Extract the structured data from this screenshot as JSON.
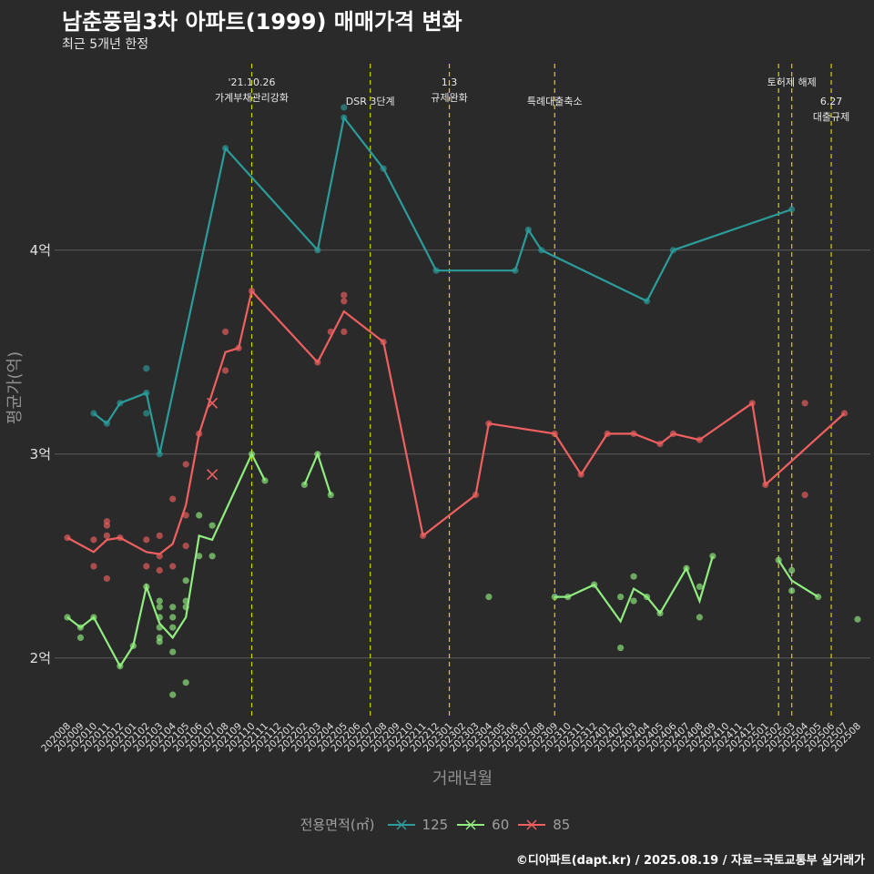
{
  "title": "남춘풍림3차 아파트(1999) 매매가격 변화",
  "subtitle": "최근 5개년 한정",
  "caption": "©디아파트(dapt.kr) / 2025.08.19 / 자료=국토교통부 실거래가",
  "chart_data": {
    "type": "line",
    "xlabel": "거래년월",
    "ylabel": "평균가(억)",
    "ylim": [
      1.7,
      4.95
    ],
    "yticks": [
      {
        "v": 2,
        "label": "2억"
      },
      {
        "v": 3,
        "label": "3억"
      },
      {
        "v": 4,
        "label": "4억"
      }
    ],
    "x": [
      "202008",
      "202009",
      "202010",
      "202011",
      "202012",
      "202101",
      "202102",
      "202103",
      "202104",
      "202105",
      "202106",
      "202107",
      "202108",
      "202109",
      "202110",
      "202111",
      "202112",
      "202201",
      "202202",
      "202203",
      "202204",
      "202205",
      "202206",
      "202207",
      "202208",
      "202209",
      "202210",
      "202211",
      "202212",
      "202301",
      "202302",
      "202303",
      "202304",
      "202305",
      "202306",
      "202307",
      "202308",
      "202309",
      "202310",
      "202311",
      "202312",
      "202401",
      "202402",
      "202403",
      "202404",
      "202405",
      "202406",
      "202407",
      "202408",
      "202409",
      "202410",
      "202411",
      "202412",
      "202501",
      "202502",
      "202503",
      "202504",
      "202505",
      "202506",
      "202507",
      "202508"
    ],
    "grid": true,
    "legend": {
      "title": "전용면적(㎡)",
      "placement": "bottom"
    },
    "series": [
      {
        "name": "125",
        "color": "#2a9d9a",
        "line": [
          [
            "202010",
            3.2
          ],
          [
            "202011",
            3.15
          ],
          [
            "202012",
            3.25
          ],
          [
            "202102",
            3.3
          ],
          [
            "202103",
            3.0
          ],
          [
            "202108",
            4.5
          ],
          [
            "202203",
            4.0
          ],
          [
            "202205",
            4.65
          ],
          [
            "202208",
            4.4
          ],
          [
            "202212",
            3.9
          ],
          [
            "202306",
            3.9
          ],
          [
            "202307",
            4.1
          ],
          [
            "202308",
            4.0
          ],
          [
            "202404",
            3.75
          ],
          [
            "202406",
            4.0
          ],
          [
            "202503",
            4.2
          ]
        ],
        "points": [
          [
            "202010",
            3.2
          ],
          [
            "202011",
            3.15
          ],
          [
            "202012",
            3.25
          ],
          [
            "202102",
            3.3
          ],
          [
            "202102",
            3.42
          ],
          [
            "202102",
            3.2
          ],
          [
            "202103",
            3.0
          ],
          [
            "202108",
            4.5
          ],
          [
            "202203",
            4.0
          ],
          [
            "202205",
            4.65
          ],
          [
            "202205",
            4.7
          ],
          [
            "202208",
            4.4
          ],
          [
            "202212",
            3.9
          ],
          [
            "202306",
            3.9
          ],
          [
            "202307",
            4.1
          ],
          [
            "202308",
            4.0
          ],
          [
            "202404",
            3.75
          ],
          [
            "202406",
            4.0
          ],
          [
            "202503",
            4.2
          ]
        ],
        "crosses": []
      },
      {
        "name": "60",
        "color": "#90ee7e",
        "line": [
          [
            "202008",
            2.2
          ],
          [
            "202009",
            2.15
          ],
          [
            "202010",
            2.2
          ],
          [
            "202012",
            1.96
          ],
          [
            "202101",
            2.06
          ],
          [
            "202102",
            2.35
          ],
          [
            "202103",
            2.17
          ],
          [
            "202104",
            2.1
          ],
          [
            "202105",
            2.2
          ],
          [
            "202106",
            2.6
          ],
          [
            "202107",
            2.58
          ],
          [
            "202110",
            3.0
          ],
          [
            "202111",
            2.87
          ],
          null,
          [
            "202202",
            2.85
          ],
          [
            "202203",
            3.0
          ],
          [
            "202204",
            2.8
          ],
          null,
          [
            "202309",
            2.3
          ],
          [
            "202310",
            2.3
          ],
          [
            "202312",
            2.36
          ],
          [
            "202402",
            2.18
          ],
          [
            "202403",
            2.34
          ],
          [
            "202404",
            2.3
          ],
          [
            "202405",
            2.22
          ],
          [
            "202407",
            2.44
          ],
          [
            "202408",
            2.28
          ],
          [
            "202409",
            2.5
          ],
          null,
          [
            "202502",
            2.48
          ],
          [
            "202503",
            2.38
          ],
          [
            "202505",
            2.3
          ]
        ],
        "points": [
          [
            "202008",
            2.2
          ],
          [
            "202009",
            2.1
          ],
          [
            "202009",
            2.15
          ],
          [
            "202010",
            2.2
          ],
          [
            "202012",
            1.96
          ],
          [
            "202101",
            2.06
          ],
          [
            "202102",
            2.35
          ],
          [
            "202103",
            2.28
          ],
          [
            "202103",
            2.25
          ],
          [
            "202103",
            2.2
          ],
          [
            "202103",
            2.15
          ],
          [
            "202103",
            2.1
          ],
          [
            "202103",
            2.08
          ],
          [
            "202104",
            2.25
          ],
          [
            "202104",
            2.2
          ],
          [
            "202104",
            2.15
          ],
          [
            "202104",
            2.03
          ],
          [
            "202104",
            1.82
          ],
          [
            "202105",
            2.38
          ],
          [
            "202105",
            2.28
          ],
          [
            "202105",
            2.25
          ],
          [
            "202105",
            1.88
          ],
          [
            "202106",
            2.7
          ],
          [
            "202106",
            2.5
          ],
          [
            "202107",
            2.65
          ],
          [
            "202107",
            2.5
          ],
          [
            "202110",
            3.0
          ],
          [
            "202111",
            2.87
          ],
          [
            "202202",
            2.85
          ],
          [
            "202203",
            3.0
          ],
          [
            "202204",
            2.8
          ],
          [
            "202304",
            2.3
          ],
          [
            "202309",
            2.3
          ],
          [
            "202310",
            2.3
          ],
          [
            "202312",
            2.36
          ],
          [
            "202402",
            2.3
          ],
          [
            "202402",
            2.05
          ],
          [
            "202403",
            2.4
          ],
          [
            "202403",
            2.28
          ],
          [
            "202404",
            2.3
          ],
          [
            "202405",
            2.22
          ],
          [
            "202407",
            2.44
          ],
          [
            "202408",
            2.35
          ],
          [
            "202408",
            2.2
          ],
          [
            "202409",
            2.5
          ],
          [
            "202502",
            2.48
          ],
          [
            "202503",
            2.43
          ],
          [
            "202503",
            2.33
          ],
          [
            "202505",
            2.3
          ],
          [
            "202508",
            2.19
          ]
        ],
        "crosses": []
      },
      {
        "name": "85",
        "color": "#f06060",
        "line": [
          [
            "202008",
            2.59
          ],
          [
            "202010",
            2.52
          ],
          [
            "202011",
            2.58
          ],
          [
            "202012",
            2.59
          ],
          [
            "202102",
            2.52
          ],
          [
            "202103",
            2.51
          ],
          [
            "202104",
            2.56
          ],
          [
            "202105",
            2.75
          ],
          [
            "202106",
            3.1
          ],
          [
            "202108",
            3.5
          ],
          [
            "202109",
            3.52
          ],
          [
            "202110",
            3.8
          ],
          [
            "202203",
            3.45
          ],
          [
            "202205",
            3.7
          ],
          [
            "202208",
            3.55
          ],
          [
            "202211",
            2.6
          ],
          [
            "202303",
            2.8
          ],
          [
            "202304",
            3.15
          ],
          [
            "202309",
            3.1
          ],
          [
            "202311",
            2.9
          ],
          [
            "202401",
            3.1
          ],
          [
            "202403",
            3.1
          ],
          [
            "202405",
            3.05
          ],
          [
            "202406",
            3.1
          ],
          [
            "202408",
            3.07
          ],
          [
            "202412",
            3.25
          ],
          [
            "202501",
            2.85
          ],
          [
            "202507",
            3.2
          ]
        ],
        "points": [
          [
            "202008",
            2.59
          ],
          [
            "202010",
            2.58
          ],
          [
            "202010",
            2.45
          ],
          [
            "202011",
            2.67
          ],
          [
            "202011",
            2.65
          ],
          [
            "202011",
            2.6
          ],
          [
            "202011",
            2.39
          ],
          [
            "202012",
            2.59
          ],
          [
            "202102",
            2.58
          ],
          [
            "202102",
            2.45
          ],
          [
            "202103",
            2.6
          ],
          [
            "202103",
            2.5
          ],
          [
            "202103",
            2.43
          ],
          [
            "202104",
            2.78
          ],
          [
            "202104",
            2.45
          ],
          [
            "202105",
            2.95
          ],
          [
            "202105",
            2.7
          ],
          [
            "202105",
            2.55
          ],
          [
            "202106",
            3.1
          ],
          [
            "202108",
            3.6
          ],
          [
            "202108",
            3.41
          ],
          [
            "202109",
            3.52
          ],
          [
            "202110",
            3.8
          ],
          [
            "202203",
            3.45
          ],
          [
            "202204",
            3.6
          ],
          [
            "202205",
            3.78
          ],
          [
            "202205",
            3.75
          ],
          [
            "202205",
            3.6
          ],
          [
            "202208",
            3.55
          ],
          [
            "202211",
            2.6
          ],
          [
            "202303",
            2.8
          ],
          [
            "202304",
            3.15
          ],
          [
            "202309",
            3.1
          ],
          [
            "202311",
            2.9
          ],
          [
            "202401",
            3.1
          ],
          [
            "202403",
            3.1
          ],
          [
            "202405",
            3.05
          ],
          [
            "202406",
            3.1
          ],
          [
            "202408",
            3.07
          ],
          [
            "202412",
            3.25
          ],
          [
            "202501",
            2.85
          ],
          [
            "202504",
            3.25
          ],
          [
            "202504",
            2.8
          ],
          [
            "202507",
            3.2
          ]
        ],
        "crosses": [
          [
            "202107",
            3.25
          ],
          [
            "202107",
            2.9
          ]
        ]
      }
    ],
    "events": [
      {
        "x": "202110",
        "lines": [
          "'21.10.26",
          "가계부채관리강화"
        ],
        "row": 0
      },
      {
        "x": "202207",
        "lines": [
          "DSR 3단계"
        ],
        "row": 1
      },
      {
        "x": "202301",
        "lines": [
          "1.3",
          "규제완화"
        ],
        "row": 0
      },
      {
        "x": "202309",
        "lines": [
          "특례대출축소"
        ],
        "row": 1
      },
      {
        "x": "202502",
        "lines": [],
        "row": 0
      },
      {
        "x": "202503",
        "lines": [
          "토허제 해제"
        ],
        "row": 0
      },
      {
        "x": "202506",
        "lines": [
          "6.27",
          "대출규제"
        ],
        "row": 1
      }
    ]
  }
}
